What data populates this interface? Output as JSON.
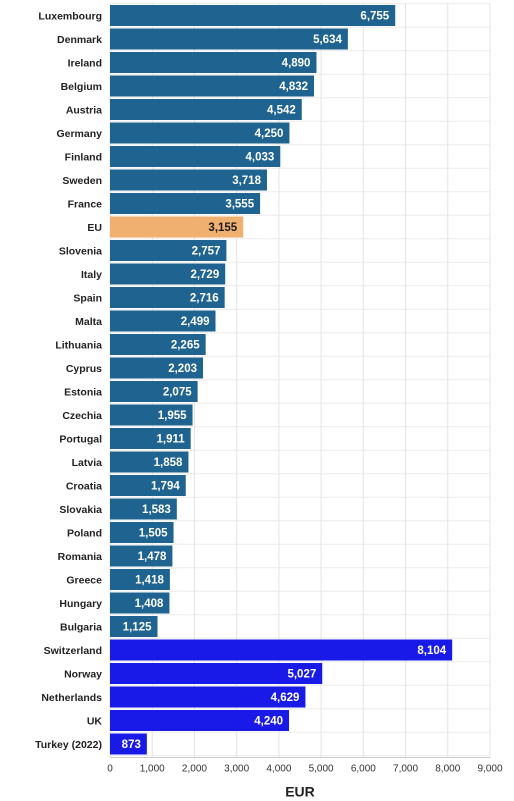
{
  "chart_data": {
    "type": "bar",
    "orientation": "horizontal",
    "title": "",
    "xlabel": "EUR",
    "ylabel": "",
    "xlim": [
      0,
      9000
    ],
    "x_ticks": [
      0,
      1000,
      2000,
      3000,
      4000,
      5000,
      6000,
      7000,
      8000,
      9000
    ],
    "x_tick_labels": [
      "0",
      "1,000",
      "2,000",
      "3,000",
      "4,000",
      "5,000",
      "6,000",
      "7,000",
      "8,000",
      "9,000"
    ],
    "grid": "vertical",
    "legend": "none",
    "colors": {
      "eu_member": "#1f6390",
      "eu_average": "#f0b070",
      "non_eu": "#1a1ae8"
    },
    "categories": [
      "Luxembourg",
      "Denmark",
      "Ireland",
      "Belgium",
      "Austria",
      "Germany",
      "Finland",
      "Sweden",
      "France",
      "EU",
      "Slovenia",
      "Italy",
      "Spain",
      "Malta",
      "Lithuania",
      "Cyprus",
      "Estonia",
      "Czechia",
      "Portugal",
      "Latvia",
      "Croatia",
      "Slovakia",
      "Poland",
      "Romania",
      "Greece",
      "Hungary",
      "Bulgaria",
      "Switzerland",
      "Norway",
      "Netherlands",
      "UK",
      "Turkey (2022)"
    ],
    "values": [
      6755,
      5634,
      4890,
      4832,
      4542,
      4250,
      4033,
      3718,
      3555,
      3155,
      2757,
      2729,
      2716,
      2499,
      2265,
      2203,
      2075,
      1955,
      1911,
      1858,
      1794,
      1583,
      1505,
      1478,
      1418,
      1408,
      1125,
      8104,
      5027,
      4629,
      4240,
      873
    ],
    "value_labels": [
      "6,755",
      "5,634",
      "4,890",
      "4,832",
      "4,542",
      "4,250",
      "4,033",
      "3,718",
      "3,555",
      "3,155",
      "2,757",
      "2,729",
      "2,716",
      "2,499",
      "2,265",
      "2,203",
      "2,075",
      "1,955",
      "1,911",
      "1,858",
      "1,794",
      "1,583",
      "1,505",
      "1,478",
      "1,418",
      "1,408",
      "1,125",
      "8,104",
      "5,027",
      "4,629",
      "4,240",
      "873"
    ],
    "groups": [
      "eu_member",
      "eu_member",
      "eu_member",
      "eu_member",
      "eu_member",
      "eu_member",
      "eu_member",
      "eu_member",
      "eu_member",
      "eu_average",
      "eu_member",
      "eu_member",
      "eu_member",
      "eu_member",
      "eu_member",
      "eu_member",
      "eu_member",
      "eu_member",
      "eu_member",
      "eu_member",
      "eu_member",
      "eu_member",
      "eu_member",
      "eu_member",
      "eu_member",
      "eu_member",
      "eu_member",
      "non_eu",
      "non_eu",
      "non_eu",
      "non_eu",
      "non_eu"
    ]
  }
}
